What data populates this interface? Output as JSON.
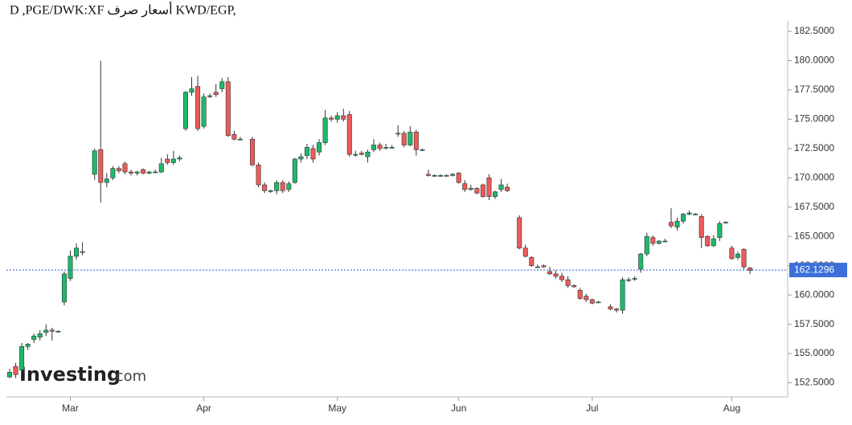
{
  "chart_data": {
    "type": "candlestick",
    "title": "D ,PGE/DWK:XF أسعار صرف KWD/EGP,",
    "watermark": "Investing",
    "watermark_suffix": ".com",
    "up_color": "#1db96b",
    "down_color": "#ee5a5a",
    "last_price": 162.1296,
    "ylim": [
      151.3,
      183.6
    ],
    "yticks": [
      {
        "value": 152.5,
        "label": "152.5000"
      },
      {
        "value": 155,
        "label": "155.0000"
      },
      {
        "value": 157.5,
        "label": "157.5000"
      },
      {
        "value": 160,
        "label": "160.0000"
      },
      {
        "value": 162.5,
        "label": "162.5000"
      },
      {
        "value": 165,
        "label": "165.0000"
      },
      {
        "value": 167.5,
        "label": "167.5000"
      },
      {
        "value": 170,
        "label": "170.0000"
      },
      {
        "value": 172.5,
        "label": "172.5000"
      },
      {
        "value": 175,
        "label": "175.0000"
      },
      {
        "value": 177.5,
        "label": "177.5000"
      },
      {
        "value": 180,
        "label": "180.0000"
      },
      {
        "value": 182.5,
        "label": "182.5000"
      }
    ],
    "categories": [
      null,
      null,
      null,
      null,
      null,
      null,
      null,
      null,
      null,
      null,
      "Mar",
      null,
      null,
      null,
      null,
      null,
      null,
      null,
      null,
      null,
      null,
      null,
      null,
      null,
      null,
      null,
      null,
      null,
      null,
      null,
      null,
      null,
      "Apr",
      null,
      null,
      null,
      null,
      null,
      null,
      null,
      null,
      null,
      null,
      null,
      null,
      null,
      null,
      null,
      null,
      null,
      null,
      null,
      null,
      null,
      "May",
      null,
      null,
      null,
      null,
      null,
      null,
      null,
      null,
      null,
      null,
      null,
      null,
      null,
      null,
      null,
      null,
      null,
      null,
      null,
      "Jun",
      null,
      null,
      null,
      null,
      null,
      null,
      null,
      null,
      null,
      null,
      null,
      null,
      null,
      null,
      null,
      null,
      null,
      null,
      null,
      null,
      null,
      "Jul",
      null,
      null,
      null,
      null,
      null,
      null,
      null,
      null,
      null,
      null,
      null,
      null,
      null,
      null,
      null,
      null,
      null,
      null,
      null,
      null,
      null,
      null,
      "Aug",
      null,
      null,
      null
    ],
    "open": [
      153.0,
      153.9,
      153.6,
      155.6,
      156.2,
      156.4,
      156.8,
      157.0,
      156.9,
      159.4,
      161.4,
      163.3,
      163.7,
      null,
      170.3,
      172.4,
      169.6,
      170.0,
      170.8,
      171.2,
      170.5,
      170.4,
      170.7,
      170.4,
      170.5,
      170.5,
      171.6,
      171.3,
      171.6,
      174.2,
      177.3,
      177.8,
      174.4,
      177.0,
      177.3,
      177.6,
      178.2,
      173.7,
      173.3,
      null,
      173.3,
      171.1,
      169.4,
      168.9,
      168.9,
      169.6,
      169.0,
      169.6,
      171.6,
      171.9,
      172.5,
      172.2,
      173.0,
      175.1,
      175.0,
      175.3,
      175.4,
      172.0,
      172.1,
      171.8,
      172.4,
      172.8,
      172.6,
      172.6,
      173.8,
      173.8,
      172.8,
      173.9,
      172.4,
      170.3,
      170.2,
      170.2,
      170.2,
      170.2,
      170.4,
      169.5,
      169.0,
      169.1,
      169.4,
      170.0,
      168.4,
      169.0,
      169.2,
      null,
      166.6,
      164.0,
      163.2,
      162.4,
      162.5,
      162.0,
      161.8,
      161.6,
      161.3,
      160.8,
      160.4,
      159.9,
      159.6,
      159.4,
      null,
      159.0,
      158.8,
      158.7,
      161.3,
      161.4,
      162.2,
      163.5,
      164.9,
      164.4,
      164.6,
      166.2,
      165.8,
      166.3,
      166.9,
      166.9,
      166.7,
      165.0,
      164.2,
      164.9,
      166.2,
      164.0,
      163.2,
      163.9,
      162.3
    ],
    "high": [
      153.7,
      154.2,
      155.9,
      155.9,
      156.7,
      157.0,
      157.5,
      157.2,
      157.0,
      162.0,
      163.8,
      164.4,
      164.5,
      null,
      172.5,
      180.0,
      170.4,
      171.0,
      171.0,
      171.4,
      170.7,
      170.6,
      170.8,
      170.6,
      170.7,
      171.7,
      172.0,
      172.3,
      171.9,
      177.4,
      178.6,
      178.7,
      177.2,
      177.2,
      178.0,
      178.5,
      178.6,
      174.0,
      173.5,
      null,
      173.5,
      171.3,
      169.6,
      169.0,
      169.8,
      169.8,
      169.7,
      171.7,
      172.1,
      172.9,
      172.8,
      173.3,
      175.8,
      175.3,
      175.6,
      175.9,
      175.7,
      172.3,
      172.3,
      172.4,
      173.3,
      173.0,
      172.9,
      172.8,
      174.5,
      174.0,
      174.4,
      174.1,
      172.5,
      170.7,
      170.3,
      170.3,
      170.3,
      170.4,
      170.5,
      169.8,
      169.4,
      169.2,
      169.5,
      170.3,
      168.9,
      169.9,
      169.5,
      null,
      166.8,
      164.3,
      163.3,
      162.6,
      162.6,
      162.4,
      162.1,
      161.9,
      161.6,
      160.9,
      160.6,
      160.1,
      159.7,
      159.5,
      null,
      159.2,
      158.9,
      161.5,
      161.5,
      161.6,
      163.6,
      165.3,
      165.1,
      164.7,
      164.8,
      167.4,
      166.6,
      167.0,
      167.2,
      167.0,
      166.9,
      165.1,
      165.1,
      166.3,
      166.3,
      164.2,
      163.7,
      164.0,
      162.4
    ],
    "low": [
      152.9,
      152.9,
      153.4,
      155.3,
      155.9,
      156.1,
      156.5,
      156.1,
      156.8,
      159.1,
      161.2,
      163.0,
      163.4,
      null,
      169.8,
      167.9,
      169.2,
      169.8,
      170.4,
      170.3,
      170.2,
      170.2,
      170.3,
      170.3,
      170.4,
      170.4,
      171.1,
      171.1,
      171.4,
      174.0,
      177.0,
      174.0,
      174.2,
      176.8,
      176.9,
      177.3,
      173.5,
      173.2,
      173.2,
      null,
      171.0,
      169.2,
      168.7,
      168.7,
      168.6,
      168.7,
      168.8,
      169.5,
      171.3,
      171.6,
      171.3,
      171.9,
      172.8,
      174.8,
      174.7,
      174.8,
      171.8,
      171.8,
      171.9,
      171.3,
      172.2,
      172.3,
      172.4,
      172.5,
      173.5,
      172.6,
      172.7,
      171.9,
      172.3,
      170.1,
      170.1,
      170.1,
      170.1,
      170.1,
      169.5,
      168.8,
      168.9,
      168.6,
      168.3,
      168.1,
      168.2,
      168.8,
      168.8,
      null,
      163.9,
      163.2,
      162.4,
      162.3,
      162.3,
      161.7,
      161.4,
      161.1,
      160.6,
      160.6,
      159.6,
      159.4,
      159.2,
      159.3,
      null,
      158.7,
      158.5,
      158.4,
      161.1,
      161.2,
      161.9,
      163.3,
      164.2,
      164.3,
      164.5,
      165.7,
      165.5,
      166.1,
      166.8,
      166.8,
      164.0,
      164.1,
      164.1,
      164.6,
      166.1,
      163.0,
      163.0,
      162.2,
      161.8
    ],
    "close": [
      153.4,
      153.2,
      155.6,
      155.8,
      156.5,
      156.7,
      157.0,
      156.9,
      156.9,
      161.8,
      163.3,
      164.0,
      163.7,
      null,
      172.3,
      169.6,
      169.9,
      170.8,
      170.6,
      170.5,
      170.4,
      170.5,
      170.4,
      170.5,
      170.5,
      171.2,
      171.3,
      171.6,
      171.7,
      177.3,
      177.6,
      174.2,
      176.9,
      177.0,
      177.1,
      178.2,
      173.6,
      173.3,
      173.3,
      null,
      171.1,
      169.4,
      168.9,
      168.9,
      169.6,
      168.9,
      169.5,
      171.6,
      171.8,
      172.6,
      171.6,
      173.0,
      175.1,
      175.0,
      175.3,
      175.0,
      172.0,
      172.0,
      172.0,
      172.2,
      172.8,
      172.5,
      172.6,
      172.6,
      173.8,
      172.8,
      173.9,
      172.4,
      172.4,
      170.2,
      170.2,
      170.2,
      170.2,
      170.3,
      169.6,
      169.0,
      169.1,
      168.7,
      168.4,
      168.4,
      168.8,
      169.4,
      168.9,
      null,
      164.0,
      163.3,
      162.5,
      162.4,
      162.4,
      161.8,
      161.6,
      161.3,
      160.8,
      160.7,
      159.7,
      159.6,
      159.3,
      159.4,
      null,
      158.8,
      158.7,
      161.3,
      161.3,
      161.4,
      163.5,
      165.0,
      164.4,
      164.6,
      164.6,
      165.9,
      166.3,
      166.9,
      167.0,
      166.9,
      164.9,
      164.2,
      164.8,
      166.1,
      166.2,
      163.1,
      163.5,
      162.4,
      162.1
    ]
  }
}
